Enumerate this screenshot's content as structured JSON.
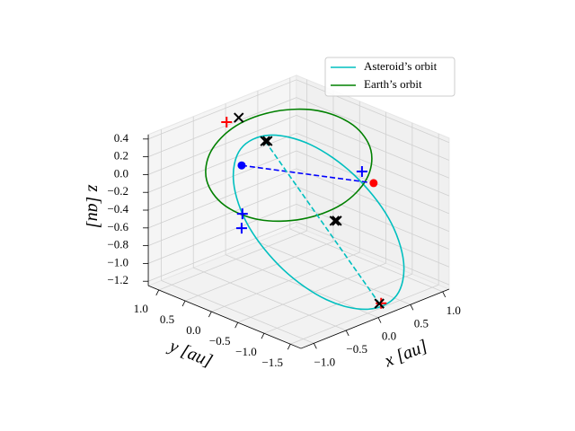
{
  "chart_data": {
    "type": "line3d",
    "series": [
      {
        "name": "Asteroid’s orbit",
        "color": "#00bfbf",
        "closed": true,
        "x": [
          0.3,
          0.7,
          0.99,
          1.1,
          0.99,
          0.7,
          0.3,
          -0.1,
          -0.39,
          -0.5,
          -0.39,
          -0.1
        ],
        "y": [
          0.74,
          0.44,
          -0.03,
          -0.55,
          -0.97,
          -1.19,
          -1.14,
          -0.84,
          -0.37,
          0.15,
          0.57,
          0.79
        ],
        "z": [
          0.12,
          -0.03,
          -0.34,
          -0.73,
          -1.09,
          -1.33,
          -1.38,
          -1.23,
          -0.92,
          -0.53,
          -0.17,
          0.07
        ]
      },
      {
        "name": "Earth’s orbit",
        "color": "#008000",
        "closed": true,
        "x": [
          1,
          0.866,
          0.5,
          0,
          -0.5,
          -0.866,
          -1,
          -0.866,
          -0.5,
          0,
          0.5,
          0.866
        ],
        "y": [
          0,
          0.5,
          0.866,
          1,
          0.866,
          0.5,
          0,
          -0.5,
          -0.866,
          -1,
          -0.866,
          -0.5
        ],
        "z": [
          0.21,
          0.29,
          0.3,
          0.25,
          0.14,
          0.01,
          -0.11,
          -0.19,
          -0.2,
          -0.15,
          -0.04,
          0.09
        ]
      }
    ],
    "segments": [
      {
        "color": "#0000ff",
        "dashed": true,
        "x": [
          -0.29,
          0.41
        ],
        "y": [
          0.54,
          -1.11
        ],
        "z": [
          0,
          0
        ]
      },
      {
        "color": "#00bfbf",
        "dashed": true,
        "x": [
          0.19,
          0.36
        ],
        "y": [
          0.68,
          -1.28
        ],
        "z": [
          0.1,
          -1.3
        ]
      }
    ],
    "markers": [
      {
        "marker": "o",
        "color": "#0000ff",
        "x": [
          -0.29
        ],
        "y": [
          0.54
        ],
        "z": [
          0
        ]
      },
      {
        "marker": "o",
        "color": "#ff0000",
        "x": [
          0.41
        ],
        "y": [
          -1.11
        ],
        "z": [
          0
        ]
      },
      {
        "marker": "+",
        "color": "#0000ff",
        "x": [
          0.54,
          -0.36,
          -0.47
        ],
        "y": [
          -0.73,
          0.44,
          0.32
        ],
        "z": [
          0,
          -0.5,
          -0.6
        ]
      },
      {
        "marker": "+",
        "color": "#ff0000",
        "x": [
          -0.09,
          0.38
        ],
        "y": [
          1.07,
          -1.29
        ],
        "z": [
          0.3,
          -1.3
        ]
      },
      {
        "marker": "x",
        "color": "#000000",
        "x": [
          0.09,
          0.19,
          0.21,
          0.4,
          0.42,
          0.36
        ],
        "y": [
          1.06,
          0.68,
          0.66,
          -0.38,
          -0.4,
          -1.28
        ],
        "z": [
          0.3,
          0.1,
          0.1,
          -0.6,
          -0.6,
          -1.3
        ]
      }
    ],
    "xlabel": "x [au]",
    "ylabel": "y [au]",
    "zlabel": "z [au]",
    "xlim": [
      -1.2,
      1.1
    ],
    "ylim": [
      -1.7,
      1.2
    ],
    "zlim": [
      -1.25,
      0.45
    ],
    "xticks": [
      {
        "value": -1,
        "label": "−1.0"
      },
      {
        "value": -0.5,
        "label": "−0.5"
      },
      {
        "value": 0,
        "label": "0.0"
      },
      0.5,
      {
        "value": 1,
        "label": "1.0"
      }
    ],
    "yticks": [
      {
        "value": -1.5,
        "label": "−1.5"
      },
      {
        "value": -1,
        "label": "−1.0"
      },
      {
        "value": -0.5,
        "label": "−0.5"
      },
      {
        "value": 0,
        "label": "0.0"
      },
      0.5,
      {
        "value": 1,
        "label": "1.0"
      }
    ],
    "zticks": [
      {
        "value": -1.2,
        "label": "−1.2"
      },
      {
        "value": -1,
        "label": "−1.0"
      },
      {
        "value": -0.8,
        "label": "−0.8"
      },
      {
        "value": -0.6,
        "label": "−0.6"
      },
      {
        "value": -0.4,
        "label": "−0.4"
      },
      {
        "value": -0.2,
        "label": "−0.2"
      },
      {
        "value": 0,
        "label": "0.0"
      },
      0.2,
      0.4
    ],
    "grid": true,
    "legend": "upper right"
  }
}
